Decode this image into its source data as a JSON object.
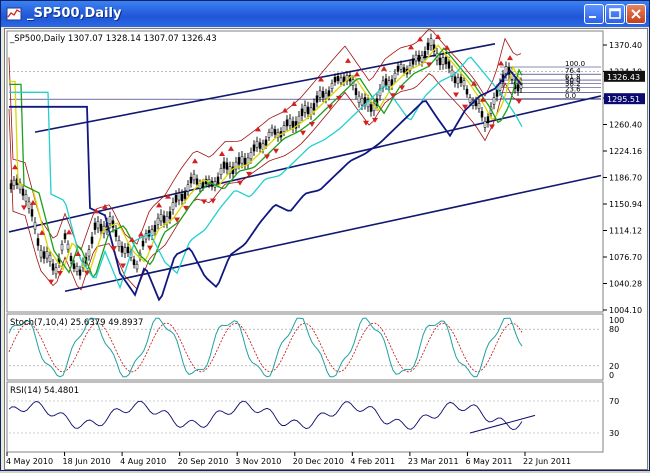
{
  "window": {
    "title": "_SP500,Daily"
  },
  "colors": {
    "up_arrow": "#d62020",
    "down_arrow": "#d62020",
    "candles": "#000000",
    "ma_yellow": "#d8d800",
    "ma_green": "#1aa01a",
    "ma_cyan": "#21d0d0",
    "ma_navy": "#101880",
    "bollinger": "#a01010",
    "channel": "#101870",
    "fib_level_bg": "#0a0a70",
    "rsi_line": "#0a0a70",
    "stoch_main": "#21a0a0",
    "stoch_signal": "#c01010"
  },
  "main_panel": {
    "header": "_SP500,Daily  1307.07 1328.14 1307.07 1326.43",
    "price_ticks": [
      "1370.40",
      "1334.10",
      "1296.94",
      "1260.40",
      "1224.16",
      "1186.70",
      "1150.94",
      "1114.12",
      "1076.70",
      "1040.28",
      "1004.10"
    ],
    "current_price": "1326.43",
    "line_price": "1295.51",
    "fib_labels": [
      "100.0",
      "76.4",
      "61.8",
      "50.0",
      "38.2",
      "23.6",
      "0.0"
    ]
  },
  "stoch_panel": {
    "header": "Stoch(7,10,4) 25.6379 49.8937",
    "axis_labels": [
      "100",
      "80",
      "20",
      "0"
    ]
  },
  "rsi_panel": {
    "header": "RSI(14) 54.4801",
    "axis_labels": [
      "70",
      "30"
    ]
  },
  "date_axis": [
    "4 May 2010",
    "18 Jun 2010",
    "4 Aug 2010",
    "20 Sep 2010",
    "3 Nov 2010",
    "20 Dec 2010",
    "4 Feb 2011",
    "23 Mar 2011",
    "6 May 2011",
    "22 Jun 2011"
  ]
}
